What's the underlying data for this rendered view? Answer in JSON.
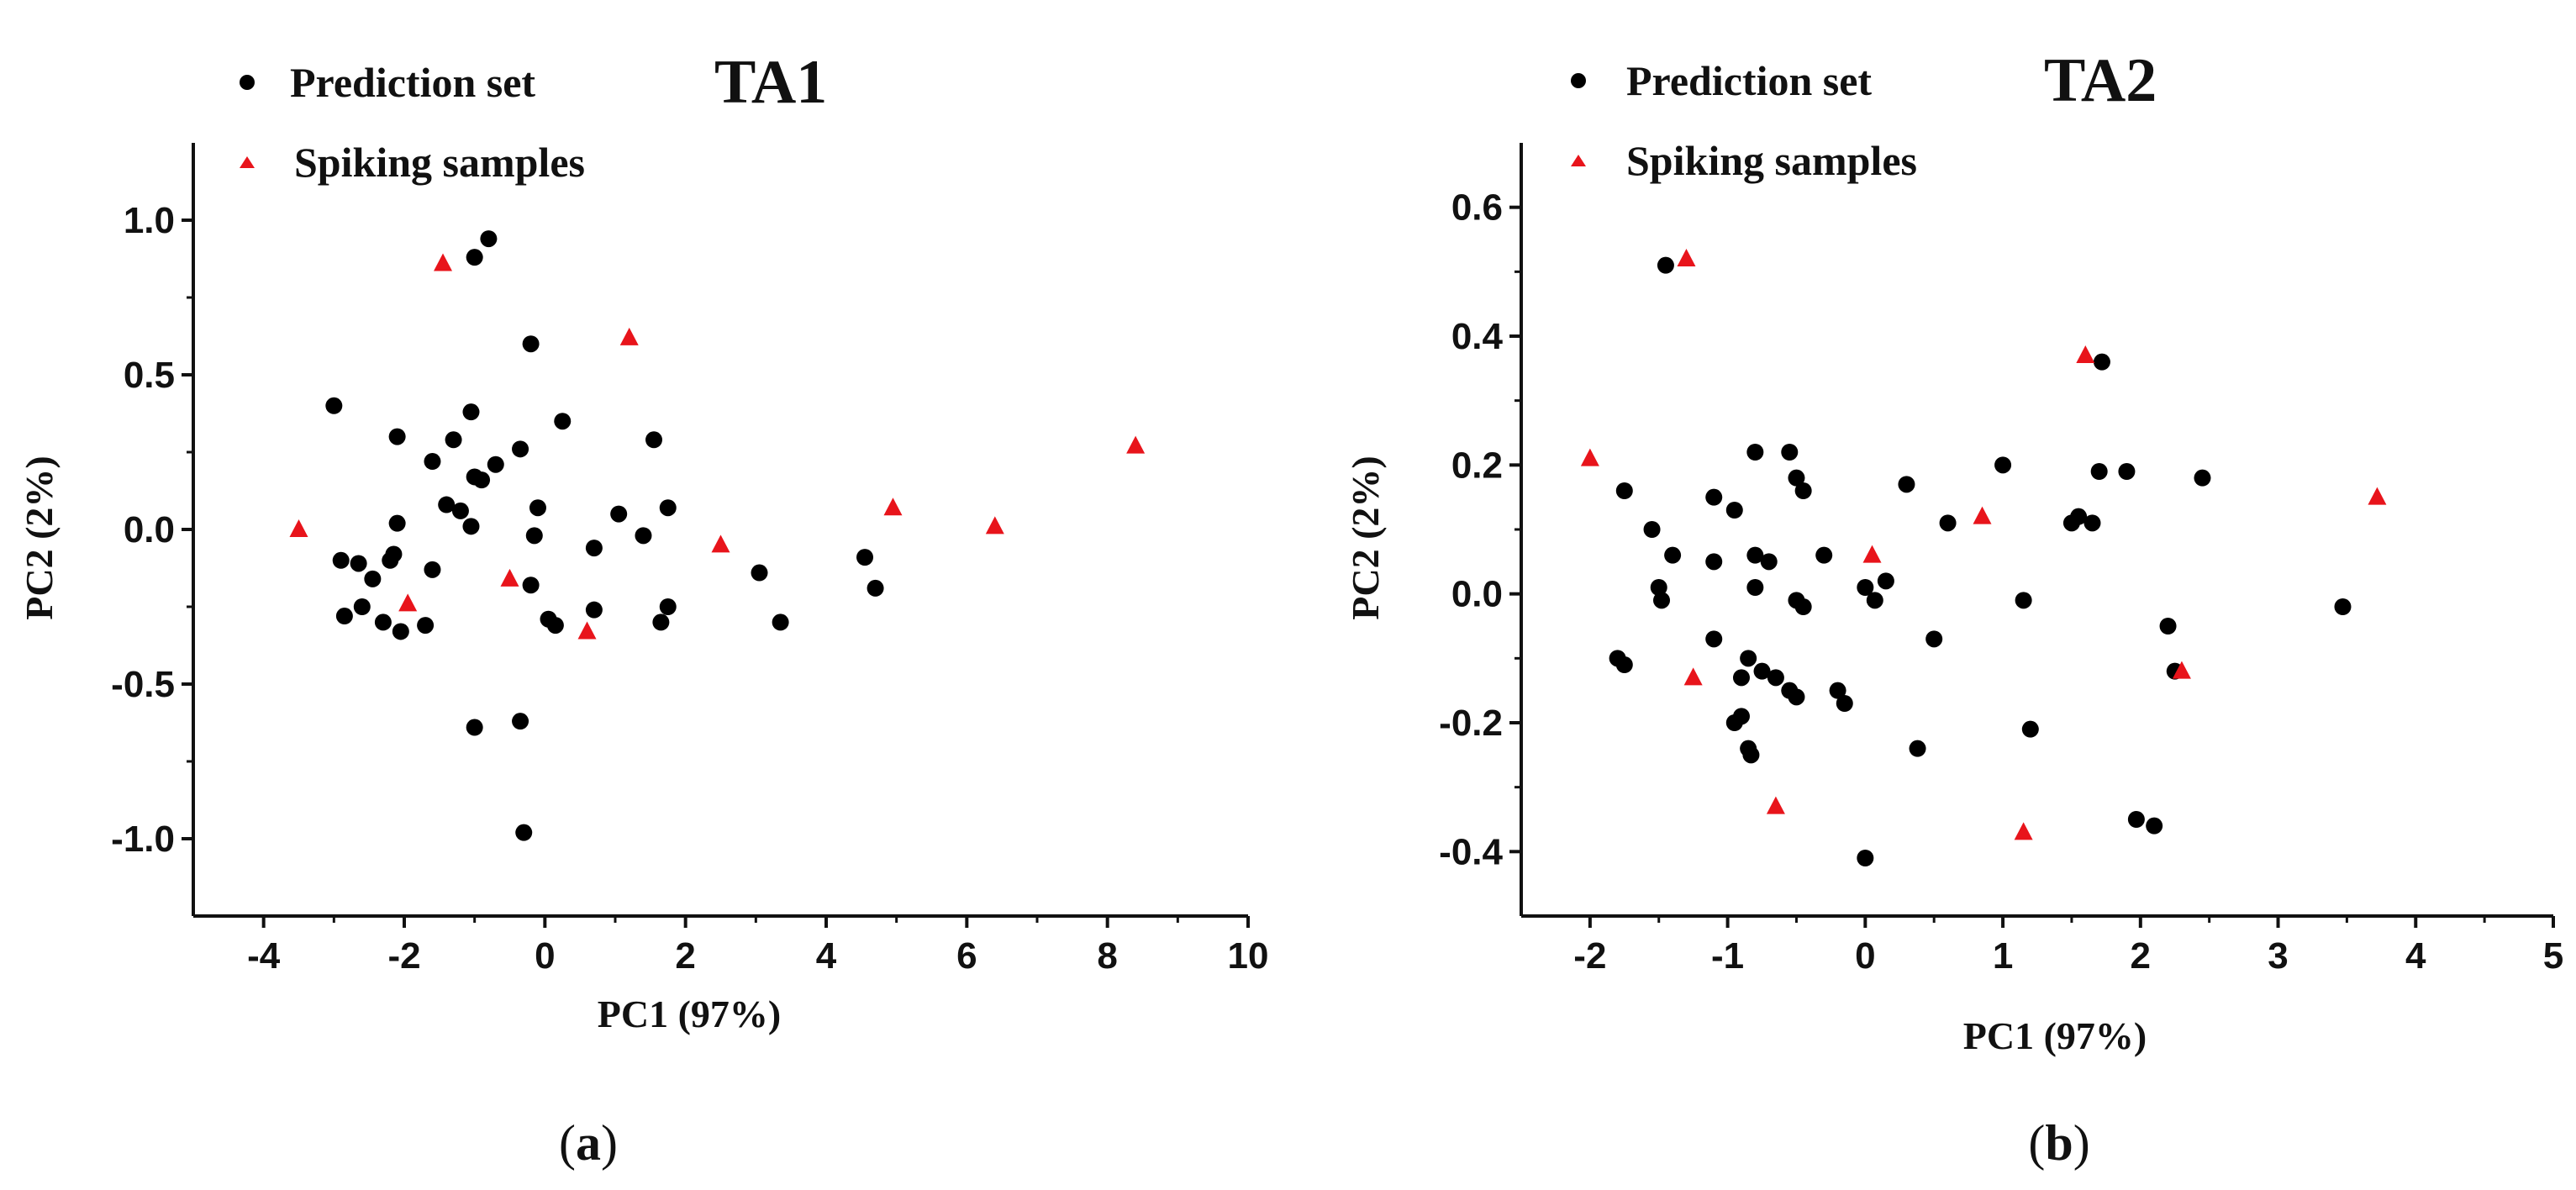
{
  "figure": {
    "colors": {
      "prediction": "#000000",
      "spiking": "#e8141b",
      "axis": "#111111"
    }
  },
  "chart_data": [
    {
      "type": "scatter",
      "title": "TA1",
      "panel_label": "a",
      "xlabel": "PC1 (97%)",
      "ylabel": "PC2 (2%)",
      "xlim": [
        -5,
        10
      ],
      "ylim": [
        -1.25,
        1.25
      ],
      "xticks": [
        -4,
        -2,
        0,
        2,
        4,
        6,
        8,
        10
      ],
      "xtick_labels": [
        "-4",
        "-2",
        "0",
        "2",
        "4",
        "6",
        "8",
        "10"
      ],
      "yticks": [
        -1.0,
        -0.5,
        0.0,
        0.5,
        1.0
      ],
      "ytick_labels": [
        "-1.0",
        "-0.5",
        "0.0",
        "0.5",
        "1.0"
      ],
      "legend_position": "top-left",
      "series": [
        {
          "name": "Prediction set",
          "marker": "circle",
          "color": "#000000",
          "points": [
            [
              -0.8,
              0.94
            ],
            [
              -1.0,
              0.88
            ],
            [
              -0.2,
              0.6
            ],
            [
              -3.0,
              0.4
            ],
            [
              -1.05,
              0.38
            ],
            [
              0.25,
              0.35
            ],
            [
              -2.1,
              0.3
            ],
            [
              -1.3,
              0.29
            ],
            [
              1.55,
              0.29
            ],
            [
              -0.35,
              0.26
            ],
            [
              -1.6,
              0.22
            ],
            [
              -0.7,
              0.21
            ],
            [
              -1.0,
              0.17
            ],
            [
              -0.9,
              0.16
            ],
            [
              -1.4,
              0.08
            ],
            [
              -1.2,
              0.06
            ],
            [
              -0.1,
              0.07
            ],
            [
              1.75,
              0.07
            ],
            [
              1.05,
              0.05
            ],
            [
              -2.1,
              0.02
            ],
            [
              -1.05,
              0.01
            ],
            [
              -0.15,
              -0.02
            ],
            [
              1.4,
              -0.02
            ],
            [
              -2.15,
              -0.08
            ],
            [
              0.7,
              -0.06
            ],
            [
              -2.9,
              -0.1
            ],
            [
              -2.2,
              -0.1
            ],
            [
              -2.65,
              -0.11
            ],
            [
              -1.6,
              -0.13
            ],
            [
              -0.2,
              -0.18
            ],
            [
              -2.45,
              -0.16
            ],
            [
              -2.6,
              -0.25
            ],
            [
              -2.85,
              -0.28
            ],
            [
              -2.3,
              -0.3
            ],
            [
              -2.05,
              -0.33
            ],
            [
              -1.7,
              -0.31
            ],
            [
              0.05,
              -0.29
            ],
            [
              0.15,
              -0.31
            ],
            [
              0.7,
              -0.26
            ],
            [
              1.65,
              -0.3
            ],
            [
              1.75,
              -0.25
            ],
            [
              3.05,
              -0.14
            ],
            [
              3.35,
              -0.3
            ],
            [
              4.55,
              -0.09
            ],
            [
              4.7,
              -0.19
            ],
            [
              -1.0,
              -0.64
            ],
            [
              -0.35,
              -0.62
            ],
            [
              -0.3,
              -0.98
            ]
          ]
        },
        {
          "name": "Spiking samples",
          "marker": "triangle",
          "color": "#e8141b",
          "points": [
            [
              -1.45,
              0.86
            ],
            [
              1.2,
              0.62
            ],
            [
              8.4,
              0.27
            ],
            [
              4.95,
              0.07
            ],
            [
              6.4,
              0.01
            ],
            [
              -3.5,
              0.0
            ],
            [
              2.5,
              -0.05
            ],
            [
              -0.5,
              -0.16
            ],
            [
              -1.95,
              -0.24
            ],
            [
              0.6,
              -0.33
            ]
          ]
        }
      ]
    },
    {
      "type": "scatter",
      "title": "TA2",
      "panel_label": "b",
      "xlabel": "PC1 (97%)",
      "ylabel": "PC2 (2%)",
      "xlim": [
        -2.5,
        5
      ],
      "ylim": [
        -0.5,
        0.7
      ],
      "xticks": [
        -2,
        -1,
        0,
        1,
        2,
        3,
        4,
        5
      ],
      "xtick_labels": [
        "-2",
        "-1",
        "0",
        "1",
        "2",
        "3",
        "4",
        "5"
      ],
      "yticks": [
        -0.4,
        -0.2,
        0.0,
        0.2,
        0.4,
        0.6
      ],
      "ytick_labels": [
        "-0.4",
        "-0.2",
        "0.0",
        "0.2",
        "0.4",
        "0.6"
      ],
      "legend_position": "top-left",
      "series": [
        {
          "name": "Prediction set",
          "marker": "circle",
          "color": "#000000",
          "points": [
            [
              -1.45,
              0.51
            ],
            [
              1.72,
              0.36
            ],
            [
              -0.8,
              0.22
            ],
            [
              -0.55,
              0.22
            ],
            [
              0.3,
              0.17
            ],
            [
              1.0,
              0.2
            ],
            [
              1.7,
              0.19
            ],
            [
              1.9,
              0.19
            ],
            [
              2.45,
              0.18
            ],
            [
              -0.5,
              0.18
            ],
            [
              -0.45,
              0.16
            ],
            [
              -1.75,
              0.16
            ],
            [
              -1.1,
              0.15
            ],
            [
              -0.95,
              0.13
            ],
            [
              0.6,
              0.11
            ],
            [
              1.5,
              0.11
            ],
            [
              1.55,
              0.12
            ],
            [
              1.65,
              0.11
            ],
            [
              -1.55,
              0.1
            ],
            [
              -1.4,
              0.06
            ],
            [
              -1.1,
              0.05
            ],
            [
              -0.8,
              0.06
            ],
            [
              -0.7,
              0.05
            ],
            [
              -0.3,
              0.06
            ],
            [
              0.15,
              0.02
            ],
            [
              -1.5,
              0.01
            ],
            [
              0.0,
              0.01
            ],
            [
              -0.8,
              0.01
            ],
            [
              -1.48,
              -0.01
            ],
            [
              -0.5,
              -0.01
            ],
            [
              -0.45,
              -0.02
            ],
            [
              0.07,
              -0.01
            ],
            [
              1.15,
              -0.01
            ],
            [
              -1.1,
              -0.07
            ],
            [
              0.5,
              -0.07
            ],
            [
              2.2,
              -0.05
            ],
            [
              -1.8,
              -0.1
            ],
            [
              -1.75,
              -0.11
            ],
            [
              -0.85,
              -0.1
            ],
            [
              -0.75,
              -0.12
            ],
            [
              -0.9,
              -0.13
            ],
            [
              -0.65,
              -0.13
            ],
            [
              -0.55,
              -0.15
            ],
            [
              -0.5,
              -0.16
            ],
            [
              -0.2,
              -0.15
            ],
            [
              -0.15,
              -0.17
            ],
            [
              2.25,
              -0.12
            ],
            [
              -0.95,
              -0.2
            ],
            [
              -0.9,
              -0.19
            ],
            [
              1.2,
              -0.21
            ],
            [
              -0.85,
              -0.24
            ],
            [
              -0.83,
              -0.25
            ],
            [
              0.38,
              -0.24
            ],
            [
              1.97,
              -0.35
            ],
            [
              2.1,
              -0.36
            ],
            [
              3.47,
              -0.02
            ],
            [
              0.0,
              -0.41
            ]
          ]
        },
        {
          "name": "Spiking samples",
          "marker": "triangle",
          "color": "#e8141b",
          "points": [
            [
              -1.3,
              0.52
            ],
            [
              1.6,
              0.37
            ],
            [
              -2.0,
              0.21
            ],
            [
              3.72,
              0.15
            ],
            [
              0.85,
              0.12
            ],
            [
              0.05,
              0.06
            ],
            [
              -1.25,
              -0.13
            ],
            [
              2.3,
              -0.12
            ],
            [
              -0.65,
              -0.33
            ],
            [
              1.15,
              -0.37
            ]
          ]
        }
      ]
    }
  ]
}
